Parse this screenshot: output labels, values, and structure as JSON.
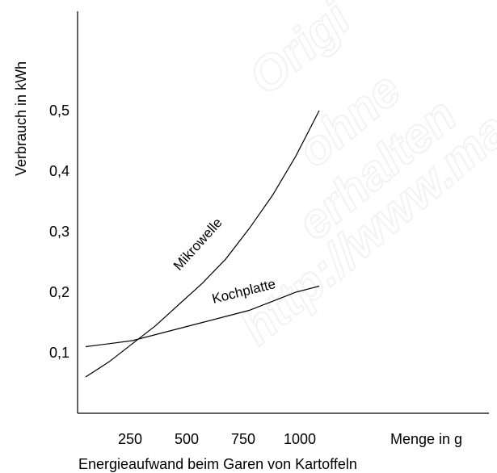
{
  "chart_data": {
    "type": "line",
    "title": "Energieaufwand beim Garen von Kartoffeln",
    "xlabel": "Menge in g",
    "ylabel": "Verbrauch in kWh",
    "xlim": [
      0,
      1000
    ],
    "ylim": [
      0,
      0.5
    ],
    "x_ticks": [
      250,
      500,
      750,
      1000
    ],
    "y_ticks": [
      "0,1",
      "0,2",
      "0,3",
      "0,4",
      "0,5"
    ],
    "y_tick_values": [
      0.1,
      0.2,
      0.3,
      0.4,
      0.5
    ],
    "grid": false,
    "legend": "none",
    "series": [
      {
        "name": "Mikrowelle",
        "x": [
          0,
          100,
          200,
          300,
          400,
          500,
          600,
          700,
          800,
          900,
          1000
        ],
        "y": [
          0.06,
          0.085,
          0.115,
          0.145,
          0.18,
          0.215,
          0.255,
          0.305,
          0.36,
          0.425,
          0.5
        ],
        "color": "#000000"
      },
      {
        "name": "Kochplatte",
        "x": [
          0,
          100,
          200,
          300,
          400,
          500,
          600,
          700,
          800,
          900,
          1000
        ],
        "y": [
          0.11,
          0.115,
          0.12,
          0.13,
          0.14,
          0.15,
          0.16,
          0.17,
          0.185,
          0.2,
          0.21
        ],
        "color": "#000000"
      }
    ]
  },
  "watermark_text": "Originalversion ohne erhalten http://www.ma"
}
